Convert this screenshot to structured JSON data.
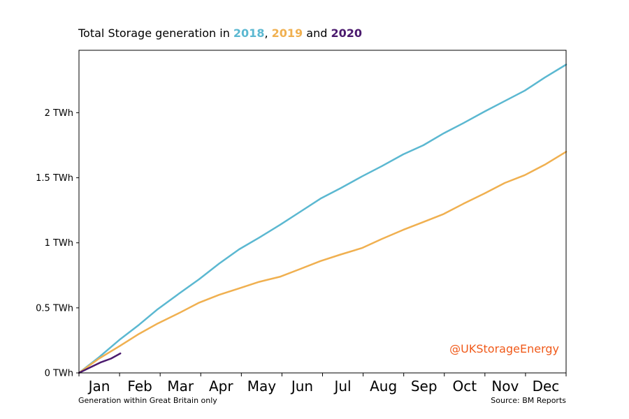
{
  "title": {
    "prefix": "Total Storage generation in",
    "years": [
      "2018",
      "2019",
      "2020"
    ],
    "sep1": ",",
    "sep2": "and"
  },
  "colors": {
    "2018": "#5bb8d1",
    "2019": "#f0b050",
    "2020": "#4b1a6e",
    "watermark": "#f05a1a"
  },
  "watermark": "@UKStorageEnergy",
  "footer_left": "Generation within Great Britain only",
  "footer_right": "Source: BM Reports",
  "chart_data": {
    "type": "line",
    "title": "Total Storage generation in 2018, 2019 and 2020",
    "xlabel": "",
    "ylabel": "",
    "x_ticks": [
      "Jan",
      "Feb",
      "Mar",
      "Apr",
      "May",
      "Jun",
      "Jul",
      "Aug",
      "Sep",
      "Oct",
      "Nov",
      "Dec"
    ],
    "y_ticks": [
      "0 TWh",
      "0.5 TWh",
      "1 TWh",
      "1.5 TWh",
      "2 TWh"
    ],
    "y_tick_values": [
      0,
      0.5,
      1,
      1.5,
      2
    ],
    "xlim": [
      0,
      365
    ],
    "ylim": [
      0,
      2.48
    ],
    "grid": false,
    "legend": "none (series named in title)",
    "series": [
      {
        "name": "2018",
        "x": [
          0,
          15,
          31,
          45,
          59,
          75,
          90,
          105,
          120,
          135,
          151,
          166,
          181,
          196,
          212,
          227,
          243,
          258,
          273,
          288,
          304,
          319,
          334,
          349,
          365
        ],
        "y": [
          0,
          0.12,
          0.26,
          0.37,
          0.49,
          0.61,
          0.72,
          0.84,
          0.95,
          1.04,
          1.14,
          1.24,
          1.34,
          1.42,
          1.51,
          1.59,
          1.68,
          1.75,
          1.84,
          1.92,
          2.01,
          2.09,
          2.17,
          2.27,
          2.37
        ]
      },
      {
        "name": "2019",
        "x": [
          0,
          15,
          31,
          45,
          59,
          75,
          90,
          105,
          120,
          135,
          151,
          166,
          181,
          196,
          212,
          227,
          243,
          258,
          273,
          288,
          304,
          319,
          334,
          349,
          365
        ],
        "y": [
          0,
          0.11,
          0.21,
          0.3,
          0.38,
          0.46,
          0.54,
          0.6,
          0.65,
          0.7,
          0.74,
          0.8,
          0.86,
          0.91,
          0.96,
          1.03,
          1.1,
          1.16,
          1.22,
          1.3,
          1.38,
          1.46,
          1.52,
          1.6,
          1.7
        ]
      },
      {
        "name": "2020",
        "x": [
          0,
          8,
          16,
          24,
          31
        ],
        "y": [
          0,
          0.04,
          0.08,
          0.11,
          0.15
        ]
      }
    ]
  }
}
